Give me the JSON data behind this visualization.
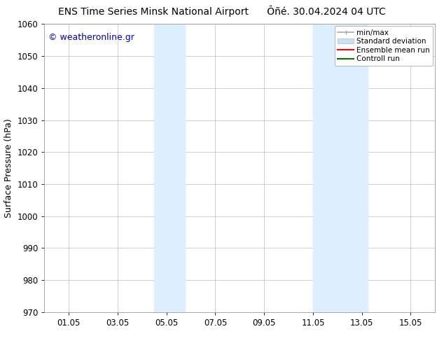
{
  "title_left": "ENS Time Series Minsk National Airport",
  "title_right": "Ôñé. 30.04.2024 04 UTC",
  "ylabel": "Surface Pressure (hPa)",
  "ylim": [
    970,
    1060
  ],
  "yticks": [
    970,
    980,
    990,
    1000,
    1010,
    1020,
    1030,
    1040,
    1050,
    1060
  ],
  "xtick_labels": [
    "01.05",
    "03.05",
    "05.05",
    "07.05",
    "09.05",
    "11.05",
    "13.05",
    "15.05"
  ],
  "xtick_positions": [
    1,
    3,
    5,
    7,
    9,
    11,
    13,
    15
  ],
  "xlim": [
    0.0,
    16.0
  ],
  "shaded_bands": [
    {
      "xmin": 4.5,
      "xmax": 5.75,
      "color": "#ddeeff"
    },
    {
      "xmin": 11.0,
      "xmax": 13.25,
      "color": "#ddeeff"
    }
  ],
  "watermark_text": "© weatheronline.gr",
  "watermark_color": "#0000cc",
  "legend_labels": [
    "min/max",
    "Standard deviation",
    "Ensemble mean run",
    "Controll run"
  ],
  "legend_colors": [
    "#aaaaaa",
    "#cce0f0",
    "#ff0000",
    "#007700"
  ],
  "bg_color": "#ffffff",
  "plot_bg_color": "#ffffff",
  "grid_color": "#bbbbbb",
  "tick_label_fontsize": 8.5,
  "axis_label_fontsize": 9,
  "title_fontsize": 10,
  "watermark_fontsize": 9
}
